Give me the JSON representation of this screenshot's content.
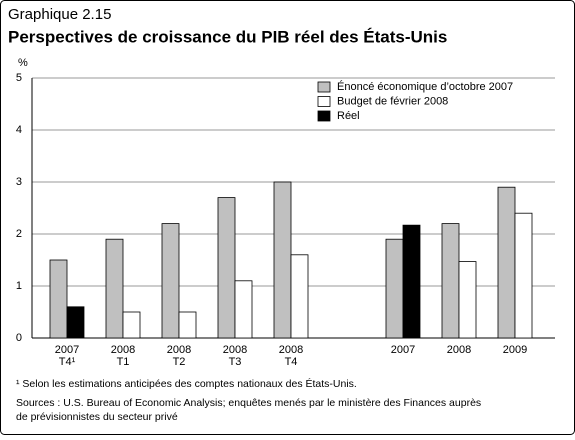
{
  "chart_data": {
    "type": "bar",
    "label": "Graphique 2.15",
    "title": "Perspectives de croissance du PIB réel des États-Unis",
    "y_label": "%",
    "categories": [
      [
        "2007",
        "T4¹"
      ],
      [
        "2008",
        "T1"
      ],
      [
        "2008",
        "T2"
      ],
      [
        "2008",
        "T3"
      ],
      [
        "2008",
        "T4"
      ],
      null,
      [
        "2007"
      ],
      [
        "2008"
      ],
      [
        "2009"
      ]
    ],
    "series": [
      {
        "name": "Énoncé économique d’octobre 2007",
        "color": "#c0c0c0",
        "values": [
          1.5,
          1.9,
          2.2,
          2.7,
          3.0,
          null,
          1.9,
          2.2,
          2.9
        ]
      },
      {
        "name": "Budget de février 2008",
        "color": "#ffffff",
        "values": [
          null,
          0.5,
          0.5,
          1.1,
          1.6,
          null,
          null,
          1.47,
          2.4
        ]
      },
      {
        "name": "Réel",
        "color": "#000000",
        "values": [
          0.6,
          null,
          null,
          null,
          null,
          null,
          2.17,
          null,
          null
        ]
      }
    ],
    "ylim": [
      0,
      5
    ],
    "yticks": [
      0,
      1,
      2,
      3,
      4,
      5
    ],
    "grid": true,
    "footnote": "¹ Selon les estimations anticipées des comptes nationaux des États-Unis.",
    "sources": [
      "Sources : U.S. Bureau of Economic Analysis; enquêtes menés par le ministère des Finances auprès",
      "de prévisionnistes du secteur privé"
    ]
  }
}
